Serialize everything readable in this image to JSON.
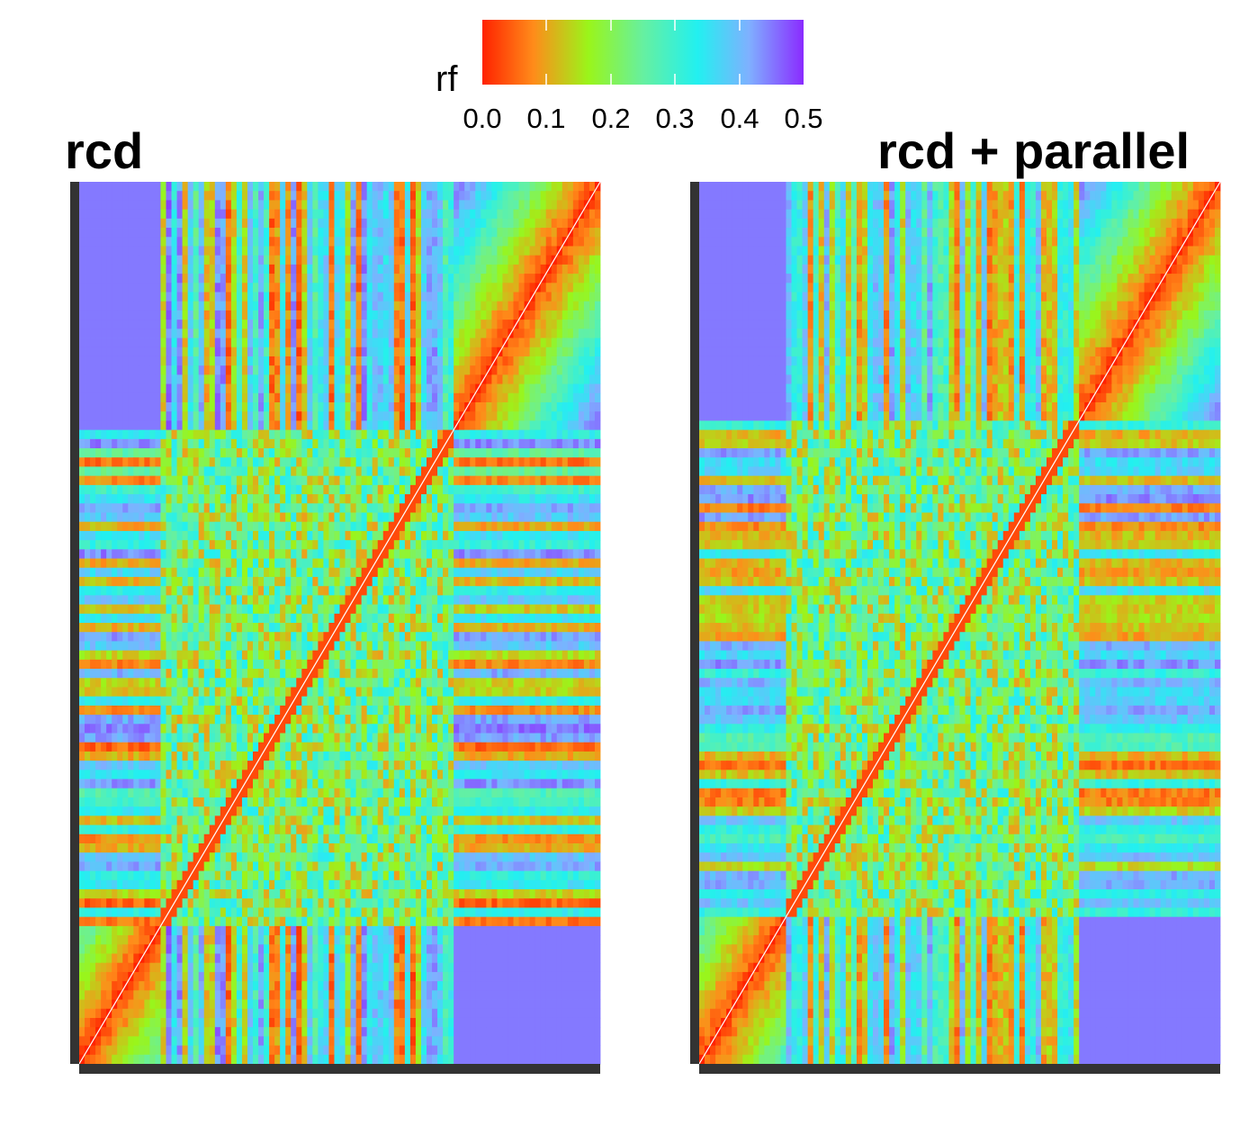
{
  "legend": {
    "title": "rf",
    "ticks": [
      "0.0",
      "0.1",
      "0.2",
      "0.3",
      "0.4",
      "0.5"
    ],
    "range": [
      0,
      0.5
    ],
    "colors": [
      "#ff2a00",
      "#ff8c1a",
      "#9af51a",
      "#5ef2a0",
      "#2af0f0",
      "#7fb0ff",
      "#8f2dff"
    ]
  },
  "chart_data": [
    {
      "type": "heatmap",
      "title": "rcd",
      "value_label": "rf",
      "value_range": [
        0,
        0.5
      ],
      "description_blocks": {
        "outer_ends": "low rf (red-orange) near diagonal",
        "central_block": "mixed noisy rf around 0.2-0.3",
        "off_diagonal_stripes": "alternating red and cyan stripes"
      }
    },
    {
      "type": "heatmap",
      "title": "rcd + parallel",
      "value_label": "rf",
      "value_range": [
        0,
        0.5
      ]
    }
  ],
  "panels": {
    "left_title": "rcd",
    "right_title": "rcd + parallel"
  }
}
